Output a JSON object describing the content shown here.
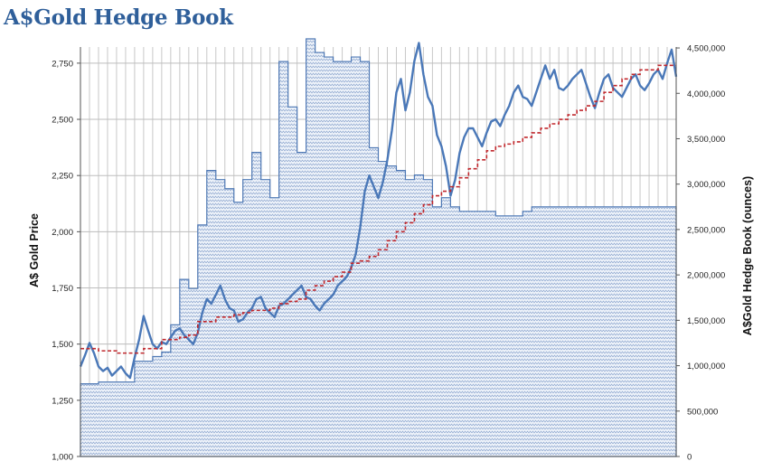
{
  "chart_data": {
    "type": "line",
    "title": "A$Gold Hedge Book",
    "ylabel": "A$ Gold Price",
    "y2label": "A$Gold Hedge Book (ounces)",
    "ylim": [
      1000,
      2850
    ],
    "y2lim": [
      0,
      4600000
    ],
    "yticks": [
      1000,
      1250,
      1500,
      1750,
      2000,
      2250,
      2500,
      2750
    ],
    "ytick_labels": [
      "1,000",
      "1,250",
      "1,500",
      "1,750",
      "2,000",
      "2,250",
      "2,500",
      "2,750"
    ],
    "y2ticks": [
      0,
      500000,
      1000000,
      1500000,
      2000000,
      2500000,
      3000000,
      3500000,
      4000000,
      4500000
    ],
    "y2tick_labels": [
      "0",
      "500,000",
      "1,000,000",
      "1,500,000",
      "2,000,000",
      "2,500,000",
      "3,000,000",
      "3,500,000",
      "4,000,000",
      "4,500,000"
    ],
    "x_periods": 66,
    "grid": true,
    "series": [
      {
        "role": "hedge_book_ounces",
        "axis": "right",
        "style": "hatched-area",
        "values": [
          800000,
          800000,
          820000,
          820000,
          820000,
          820000,
          1050000,
          1050000,
          1100000,
          1150000,
          1450000,
          1950000,
          1850000,
          2550000,
          3150000,
          3050000,
          2950000,
          2800000,
          3050000,
          3350000,
          3050000,
          2850000,
          4350000,
          3850000,
          3350000,
          4600000,
          4450000,
          4400000,
          4350000,
          4350000,
          4400000,
          4350000,
          3400000,
          3250000,
          3200000,
          3150000,
          3050000,
          3100000,
          3050000,
          2750000,
          2850000,
          2750000,
          2700000,
          2700000,
          2700000,
          2700000,
          2650000,
          2650000,
          2650000,
          2700000,
          2750000,
          2750000,
          2750000,
          2750000,
          2750000,
          2750000,
          2750000,
          2750000,
          2750000,
          2750000,
          2750000,
          2750000,
          2750000,
          2750000,
          2750000,
          2750000
        ],
        "color": "#4f79b5"
      },
      {
        "role": "a_gold_price",
        "axis": "left",
        "style": "line",
        "points": [
          [
            0,
            1400
          ],
          [
            0.5,
            1450
          ],
          [
            1,
            1505
          ],
          [
            1.5,
            1460
          ],
          [
            2,
            1400
          ],
          [
            2.5,
            1380
          ],
          [
            3,
            1395
          ],
          [
            3.5,
            1360
          ],
          [
            4,
            1380
          ],
          [
            4.5,
            1400
          ],
          [
            5,
            1370
          ],
          [
            5.5,
            1350
          ],
          [
            6,
            1440
          ],
          [
            6.5,
            1520
          ],
          [
            7,
            1625
          ],
          [
            7.5,
            1560
          ],
          [
            8,
            1500
          ],
          [
            8.5,
            1480
          ],
          [
            9,
            1510
          ],
          [
            9.5,
            1500
          ],
          [
            10,
            1530
          ],
          [
            10.5,
            1560
          ],
          [
            11,
            1570
          ],
          [
            11.5,
            1540
          ],
          [
            12,
            1520
          ],
          [
            12.5,
            1500
          ],
          [
            13,
            1550
          ],
          [
            13.5,
            1640
          ],
          [
            14,
            1700
          ],
          [
            14.5,
            1680
          ],
          [
            15,
            1720
          ],
          [
            15.5,
            1760
          ],
          [
            16,
            1700
          ],
          [
            16.5,
            1660
          ],
          [
            17,
            1650
          ],
          [
            17.5,
            1600
          ],
          [
            18,
            1610
          ],
          [
            18.5,
            1640
          ],
          [
            19,
            1660
          ],
          [
            19.5,
            1700
          ],
          [
            20,
            1710
          ],
          [
            20.5,
            1660
          ],
          [
            21,
            1640
          ],
          [
            21.5,
            1620
          ],
          [
            22,
            1670
          ],
          [
            22.5,
            1680
          ],
          [
            23,
            1700
          ],
          [
            23.5,
            1720
          ],
          [
            24,
            1740
          ],
          [
            24.5,
            1760
          ],
          [
            25,
            1710
          ],
          [
            25.5,
            1700
          ],
          [
            26,
            1670
          ],
          [
            26.5,
            1650
          ],
          [
            27,
            1680
          ],
          [
            27.5,
            1700
          ],
          [
            28,
            1720
          ],
          [
            28.5,
            1760
          ],
          [
            29,
            1780
          ],
          [
            29.5,
            1800
          ],
          [
            30,
            1840
          ],
          [
            30.5,
            1900
          ],
          [
            31,
            2020
          ],
          [
            31.5,
            2180
          ],
          [
            32,
            2250
          ],
          [
            32.5,
            2200
          ],
          [
            33,
            2150
          ],
          [
            33.5,
            2220
          ],
          [
            34,
            2320
          ],
          [
            34.5,
            2450
          ],
          [
            35,
            2620
          ],
          [
            35.5,
            2680
          ],
          [
            36,
            2540
          ],
          [
            36.5,
            2620
          ],
          [
            37,
            2760
          ],
          [
            37.5,
            2840
          ],
          [
            38,
            2700
          ],
          [
            38.5,
            2600
          ],
          [
            39,
            2560
          ],
          [
            39.5,
            2430
          ],
          [
            40,
            2380
          ],
          [
            40.5,
            2290
          ],
          [
            41,
            2160
          ],
          [
            41.5,
            2230
          ],
          [
            42,
            2350
          ],
          [
            42.5,
            2420
          ],
          [
            43,
            2460
          ],
          [
            43.5,
            2460
          ],
          [
            44,
            2420
          ],
          [
            44.5,
            2380
          ],
          [
            45,
            2440
          ],
          [
            45.5,
            2490
          ],
          [
            46,
            2500
          ],
          [
            46.5,
            2470
          ],
          [
            47,
            2520
          ],
          [
            47.5,
            2560
          ],
          [
            48,
            2620
          ],
          [
            48.5,
            2650
          ],
          [
            49,
            2600
          ],
          [
            49.5,
            2590
          ],
          [
            50,
            2560
          ],
          [
            50.5,
            2620
          ],
          [
            51,
            2680
          ],
          [
            51.5,
            2740
          ],
          [
            52,
            2680
          ],
          [
            52.5,
            2720
          ],
          [
            53,
            2640
          ],
          [
            53.5,
            2630
          ],
          [
            54,
            2650
          ],
          [
            54.5,
            2680
          ],
          [
            55,
            2700
          ],
          [
            55.5,
            2720
          ],
          [
            56,
            2660
          ],
          [
            56.5,
            2600
          ],
          [
            57,
            2550
          ],
          [
            57.5,
            2620
          ],
          [
            58,
            2680
          ],
          [
            58.5,
            2700
          ],
          [
            59,
            2640
          ],
          [
            59.5,
            2620
          ],
          [
            60,
            2600
          ],
          [
            60.5,
            2640
          ],
          [
            61,
            2680
          ],
          [
            61.5,
            2700
          ],
          [
            62,
            2650
          ],
          [
            62.5,
            2630
          ],
          [
            63,
            2660
          ],
          [
            63.5,
            2700
          ],
          [
            64,
            2720
          ],
          [
            64.5,
            2680
          ],
          [
            65,
            2750
          ],
          [
            65.5,
            2810
          ],
          [
            66,
            2690
          ]
        ],
        "color": "#4a78b8"
      },
      {
        "role": "hedge_book_price",
        "axis": "left",
        "style": "dashed-step",
        "values": [
          1480,
          1480,
          1470,
          1470,
          1460,
          1460,
          1460,
          1480,
          1480,
          1520,
          1520,
          1530,
          1540,
          1600,
          1600,
          1620,
          1620,
          1630,
          1640,
          1650,
          1650,
          1660,
          1680,
          1690,
          1700,
          1740,
          1760,
          1780,
          1800,
          1820,
          1860,
          1870,
          1890,
          1920,
          1960,
          2000,
          2040,
          2080,
          2120,
          2160,
          2180,
          2200,
          2240,
          2280,
          2320,
          2360,
          2380,
          2390,
          2400,
          2420,
          2440,
          2460,
          2480,
          2500,
          2520,
          2540,
          2560,
          2580,
          2620,
          2650,
          2680,
          2700,
          2720,
          2720,
          2740,
          2740
        ],
        "color": "#c0282d"
      }
    ]
  }
}
